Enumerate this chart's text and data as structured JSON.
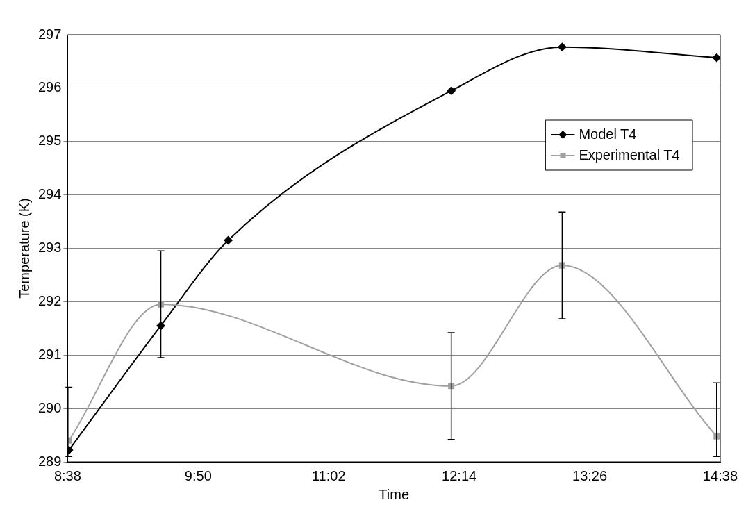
{
  "chart_data": {
    "type": "line",
    "xlabel": "Time",
    "ylabel": "Temperature (K)",
    "xlim": [
      8.6333,
      14.6333
    ],
    "xticks": [
      {
        "value": 8.6333,
        "label": "8:38"
      },
      {
        "value": 9.8333,
        "label": "9:50"
      },
      {
        "value": 11.0333,
        "label": "11:02"
      },
      {
        "value": 12.2333,
        "label": "12:14"
      },
      {
        "value": 13.4333,
        "label": "13:26"
      },
      {
        "value": 14.6333,
        "label": "14:38"
      }
    ],
    "ylim": [
      289,
      297
    ],
    "yticks": [
      289,
      290,
      291,
      292,
      293,
      294,
      295,
      296,
      297
    ],
    "grid": "y",
    "legend": "right",
    "series": [
      {
        "name": "Model T4",
        "color": "#000000",
        "marker": "diamond",
        "x": [
          8.645,
          9.49,
          10.11,
          12.16,
          13.18,
          14.6
        ],
        "values": [
          289.22,
          291.55,
          293.15,
          295.95,
          296.77,
          296.57
        ]
      },
      {
        "name": "Experimental T4",
        "color": "#a0a0a0",
        "marker": "square",
        "x": [
          8.645,
          9.49,
          12.16,
          13.18,
          14.6
        ],
        "values": [
          289.4,
          291.95,
          290.42,
          292.68,
          289.48
        ],
        "errors": [
          [
            289.1,
            290.4
          ],
          1,
          1,
          1,
          [
            289.1,
            290.48
          ]
        ]
      }
    ]
  }
}
